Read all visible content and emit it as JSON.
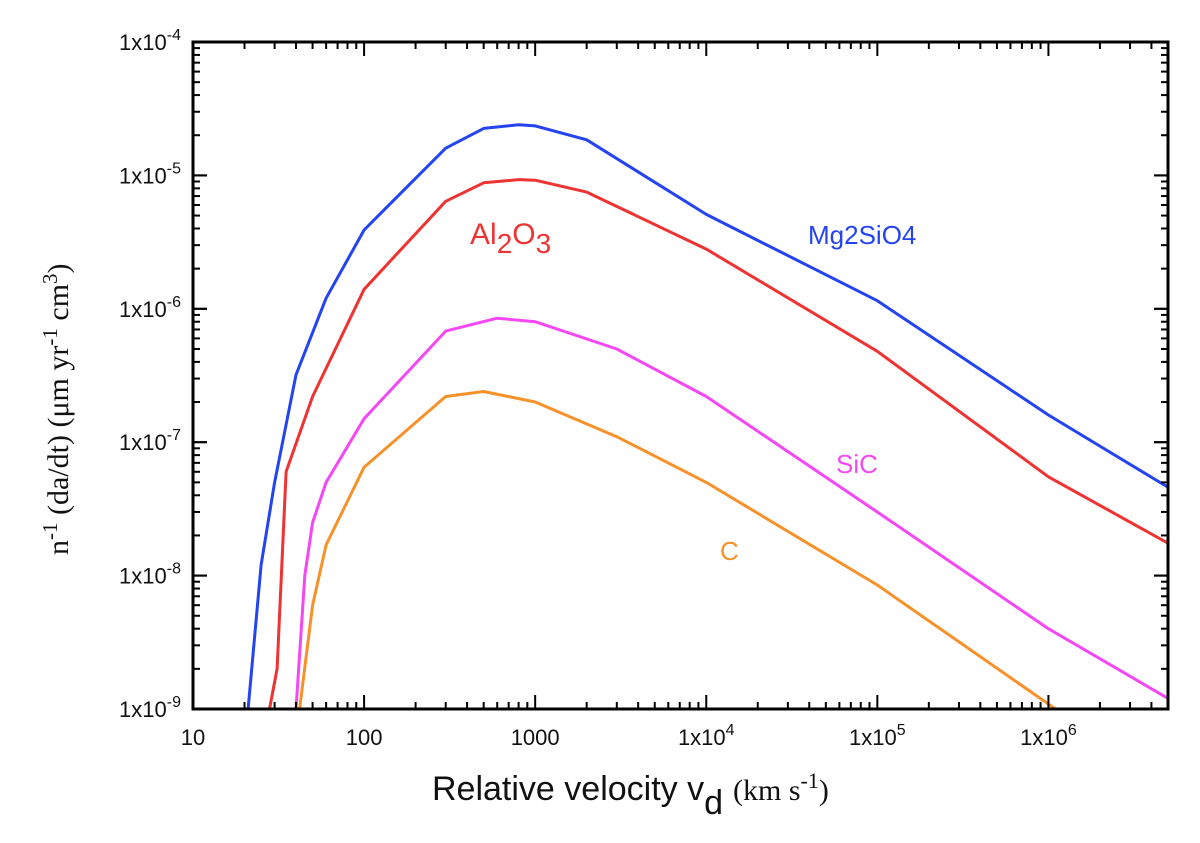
{
  "chart_data": {
    "type": "line",
    "title": "",
    "xlabel": "Relative velocity v_d (km s^-1)",
    "xlabel_parts": {
      "main": "Relative velocity v",
      "sub": "d",
      "unit_open": "(km s",
      "unit_sup": "-1",
      "unit_close": ")"
    },
    "ylabel": "n^-1 (da/dt) (μm yr^-1 cm^3)",
    "ylabel_parts": {
      "a": "n",
      "a_sup": "-1",
      "b": " (da/dt) (μm yr",
      "b_sup": "-1",
      "c": " cm",
      "c_sup": "3",
      "d": ")"
    },
    "xscale": "log",
    "yscale": "log",
    "xlim": [
      10,
      5000000
    ],
    "ylim": [
      1e-09,
      0.0001
    ],
    "x_ticks": [
      {
        "value": 10,
        "label": "10"
      },
      {
        "value": 100,
        "label": "100"
      },
      {
        "value": 1000,
        "label": "1000"
      },
      {
        "value": 10000,
        "label": "1x10",
        "exp": "4"
      },
      {
        "value": 100000,
        "label": "1x10",
        "exp": "5"
      },
      {
        "value": 1000000,
        "label": "1x10",
        "exp": "6"
      }
    ],
    "y_ticks": [
      {
        "value": 0.0001,
        "label": "1x10",
        "exp": "-4"
      },
      {
        "value": 1e-05,
        "label": "1x10",
        "exp": "-5"
      },
      {
        "value": 1e-06,
        "label": "1x10",
        "exp": "-6"
      },
      {
        "value": 1e-07,
        "label": "1x10",
        "exp": "-7"
      },
      {
        "value": 1e-08,
        "label": "1x10",
        "exp": "-8"
      },
      {
        "value": 1e-09,
        "label": "1x10",
        "exp": "-9"
      }
    ],
    "grid": false,
    "legend": "inline labels",
    "series": [
      {
        "name": "Mg2SiO4",
        "label": "Mg2SiO4",
        "color": "#2344f0",
        "x": [
          21,
          25,
          30,
          40,
          60,
          100,
          300,
          500,
          800,
          1000,
          2000,
          10000,
          100000,
          1000000,
          5000000
        ],
        "y": [
          1e-09,
          1.2e-08,
          5e-08,
          3.2e-07,
          1.2e-06,
          3.9e-06,
          1.6e-05,
          2.25e-05,
          2.4e-05,
          2.35e-05,
          1.85e-05,
          5.1e-06,
          1.15e-06,
          1.6e-07,
          4.6e-08
        ]
      },
      {
        "name": "Al2O3",
        "label": "Al",
        "label_sub1": "2",
        "label_mid": "O",
        "label_sub2": "3",
        "color": "#ee3333",
        "x": [
          28,
          31,
          35,
          50,
          100,
          300,
          500,
          800,
          1000,
          2000,
          10000,
          100000,
          1000000,
          5000000
        ],
        "y": [
          1e-09,
          2e-09,
          6e-08,
          2.2e-07,
          1.4e-06,
          6.4e-06,
          8.8e-06,
          9.3e-06,
          9.2e-06,
          7.5e-06,
          2.8e-06,
          4.8e-07,
          5.5e-08,
          1.75e-08
        ]
      },
      {
        "name": "SiC",
        "label": "SiC",
        "color": "#f448f4",
        "x": [
          40,
          45,
          50,
          60,
          100,
          300,
          600,
          1000,
          3000,
          10000,
          100000,
          1000000,
          5000000
        ],
        "y": [
          1e-09,
          1e-08,
          2.5e-08,
          5e-08,
          1.5e-07,
          6.8e-07,
          8.5e-07,
          8e-07,
          5e-07,
          2.2e-07,
          3e-08,
          4e-09,
          1.2e-09
        ]
      },
      {
        "name": "C",
        "label": "C",
        "color": "#f7922a",
        "x": [
          42,
          50,
          60,
          100,
          300,
          500,
          1000,
          3000,
          10000,
          100000,
          1100000
        ],
        "y": [
          1e-09,
          6e-09,
          1.7e-08,
          6.5e-08,
          2.2e-07,
          2.4e-07,
          2e-07,
          1.1e-07,
          5e-08,
          8.5e-09,
          1e-09
        ]
      }
    ]
  }
}
